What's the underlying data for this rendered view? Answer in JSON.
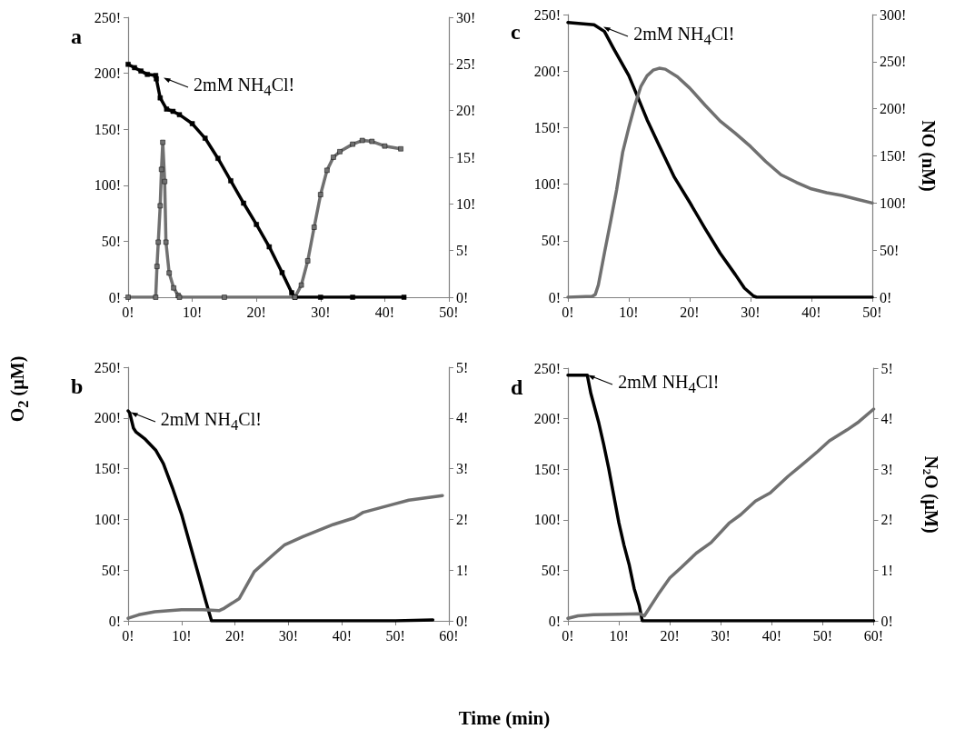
{
  "chart_data": [
    {
      "type": "line",
      "title": "a",
      "ylabel": "O$_{2}$ (µM)",
      "marker": "square",
      "xlim": [
        0,
        50
      ],
      "xticks": [
        {
          "value": 0,
          "label": "0!"
        },
        {
          "value": 10,
          "label": "10!"
        },
        {
          "value": 20,
          "label": "20!"
        },
        {
          "value": 30,
          "label": "30!"
        },
        {
          "value": 40,
          "label": "40!"
        },
        {
          "value": 50,
          "label": "50!"
        }
      ],
      "ylim": [
        0,
        250
      ],
      "yticks": [
        {
          "value": 0,
          "label": "0!"
        },
        {
          "value": 50,
          "label": "50!"
        },
        {
          "value": 100,
          "label": "100!"
        },
        {
          "value": 150,
          "label": "150!"
        },
        {
          "value": 200,
          "label": "200!"
        },
        {
          "value": 250,
          "label": "250!"
        }
      ],
      "y2lim": [
        0,
        30
      ],
      "y2ticks": [
        {
          "value": 0,
          "label": "0!"
        },
        {
          "value": 5,
          "label": "5!"
        },
        {
          "value": 10,
          "label": "10!"
        },
        {
          "value": 15,
          "label": "15!"
        },
        {
          "value": 20,
          "label": "20!"
        },
        {
          "value": 25,
          "label": "25!"
        },
        {
          "value": 30,
          "label": "30!"
        }
      ],
      "annotations": [
        {
          "text": "2mM NH$_{4}$Cl!",
          "x": 5.4,
          "y": 196
        }
      ],
      "series": [
        {
          "color": "#000000",
          "x": [
            0,
            1,
            2,
            3,
            4.3,
            4.4,
            5,
            6,
            7,
            8,
            10,
            12,
            14,
            16,
            18,
            20,
            22,
            24,
            25.5,
            26,
            30,
            35,
            43
          ],
          "values": [
            208,
            205,
            202,
            199,
            198,
            195,
            178,
            168,
            166,
            163,
            155,
            142,
            124,
            104,
            84,
            65,
            45,
            22,
            4,
            0,
            0,
            0,
            0
          ]
        },
        {
          "color": "#707070",
          "axis": "y2",
          "x": [
            0,
            4.3,
            4.5,
            4.7,
            5.0,
            5.2,
            5.4,
            5.7,
            5.9,
            6.4,
            7.1,
            7.8,
            8,
            15,
            26,
            27,
            28,
            29,
            30,
            31,
            32,
            33,
            35,
            36.5,
            38,
            40,
            42.5
          ],
          "values": [
            0,
            0,
            3.3,
            5.9,
            9.8,
            13.7,
            16.6,
            12.4,
            5.9,
            2.6,
            1,
            0.2,
            0,
            0,
            0,
            1.3,
            3.9,
            7.5,
            11,
            13.6,
            15,
            15.6,
            16.4,
            16.8,
            16.7,
            16.2,
            15.9
          ]
        }
      ]
    },
    {
      "type": "line",
      "title": "c",
      "y2label": "NO (nM)",
      "xlim": [
        0,
        50
      ],
      "xticks": [
        {
          "value": 0,
          "label": "0!"
        },
        {
          "value": 10,
          "label": "10!"
        },
        {
          "value": 20,
          "label": "20!"
        },
        {
          "value": 30,
          "label": "30!"
        },
        {
          "value": 40,
          "label": "40!"
        },
        {
          "value": 50,
          "label": "50!"
        }
      ],
      "ylim": [
        0,
        250
      ],
      "yticks": [
        {
          "value": 0,
          "label": "0!"
        },
        {
          "value": 50,
          "label": "50!"
        },
        {
          "value": 100,
          "label": "100!"
        },
        {
          "value": 150,
          "label": "150!"
        },
        {
          "value": 200,
          "label": "200!"
        },
        {
          "value": 250,
          "label": "250!"
        }
      ],
      "y2lim": [
        0,
        300
      ],
      "y2ticks": [
        {
          "value": 0,
          "label": "0!"
        },
        {
          "value": 50,
          "label": "50!"
        },
        {
          "value": 100,
          "label": "100!"
        },
        {
          "value": 150,
          "label": "150!"
        },
        {
          "value": 200,
          "label": "200!"
        },
        {
          "value": 250,
          "label": "250!"
        },
        {
          "value": 300,
          "label": "300!"
        }
      ],
      "annotations": [
        {
          "text": "2mM NH$_{4}$Cl!",
          "x": 5.7,
          "y": 239
        }
      ],
      "series": [
        {
          "color": "#000000",
          "x": [
            0,
            4.3,
            6,
            7.5,
            10,
            11.4,
            13,
            15,
            17.5,
            20,
            22.5,
            25,
            27.5,
            29,
            30.5,
            31,
            40,
            50
          ],
          "values": [
            243,
            241,
            235,
            220,
            196,
            178,
            157,
            134,
            106,
            84,
            61,
            39,
            20,
            8,
            1,
            0,
            0,
            0
          ]
        },
        {
          "color": "#707070",
          "axis": "y2",
          "x": [
            0,
            4,
            4.5,
            5,
            6,
            7,
            8,
            9,
            10,
            11,
            12,
            13,
            14,
            15,
            16,
            18,
            20,
            22.5,
            25,
            27.5,
            30,
            32.5,
            35,
            37.5,
            40,
            42.5,
            45,
            47.5,
            50
          ],
          "values": [
            0,
            1,
            3,
            13,
            47,
            80,
            114,
            154,
            180,
            204,
            224,
            235,
            241,
            243,
            242,
            234,
            222,
            204,
            187,
            174,
            160,
            144,
            130,
            122,
            115,
            111,
            108,
            104,
            100
          ]
        }
      ]
    },
    {
      "type": "line",
      "title": "b",
      "xlabel": "Time (min)",
      "xlim": [
        0,
        60
      ],
      "xticks": [
        {
          "value": 0,
          "label": "0!"
        },
        {
          "value": 10,
          "label": "10!"
        },
        {
          "value": 20,
          "label": "20!"
        },
        {
          "value": 30,
          "label": "30!"
        },
        {
          "value": 40,
          "label": "40!"
        },
        {
          "value": 50,
          "label": "50!"
        },
        {
          "value": 60,
          "label": "60!"
        }
      ],
      "ylim": [
        0,
        250
      ],
      "yticks": [
        {
          "value": 0,
          "label": "0!"
        },
        {
          "value": 50,
          "label": "50!"
        },
        {
          "value": 100,
          "label": "100!"
        },
        {
          "value": 150,
          "label": "150!"
        },
        {
          "value": 200,
          "label": "200!"
        },
        {
          "value": 250,
          "label": "250!"
        }
      ],
      "y2lim": [
        0,
        5
      ],
      "y2ticks": [
        {
          "value": 0,
          "label": "0!"
        },
        {
          "value": 1,
          "label": "1!"
        },
        {
          "value": 2,
          "label": "2!"
        },
        {
          "value": 3,
          "label": "3!"
        },
        {
          "value": 4,
          "label": "4!"
        },
        {
          "value": 5,
          "label": "5!"
        }
      ],
      "annotations": [
        {
          "text": "2mM NH$_{4}$Cl!",
          "x": 0.3,
          "y": 205
        }
      ],
      "series": [
        {
          "color": "#000000",
          "x": [
            0,
            0.3,
            1,
            1.5,
            3.2,
            5.2,
            6.6,
            8.3,
            10,
            11.7,
            13.4,
            14.5,
            15.6,
            20,
            30,
            40,
            50,
            57
          ],
          "values": [
            207,
            205,
            190,
            186,
            179,
            168,
            155,
            131,
            105,
            73,
            41,
            20,
            0,
            0,
            0,
            0,
            0,
            1
          ]
        },
        {
          "color": "#707070",
          "axis": "y2",
          "x": [
            0,
            2,
            5,
            10,
            14,
            17,
            18,
            20.8,
            23.6,
            27,
            29.3,
            32.7,
            38.4,
            42.3,
            44,
            49.7,
            52.5,
            58.8
          ],
          "values": [
            0.05,
            0.12,
            0.18,
            0.22,
            0.22,
            0.2,
            0.25,
            0.44,
            0.97,
            1.29,
            1.5,
            1.66,
            1.9,
            2.03,
            2.14,
            2.3,
            2.38,
            2.47
          ]
        }
      ]
    },
    {
      "type": "line",
      "title": "d",
      "y2label": "N$_{2}$O (µM)",
      "xlim": [
        0,
        60
      ],
      "xticks": [
        {
          "value": 0,
          "label": "0!"
        },
        {
          "value": 10,
          "label": "10!"
        },
        {
          "value": 20,
          "label": "20!"
        },
        {
          "value": 30,
          "label": "30!"
        },
        {
          "value": 40,
          "label": "40!"
        },
        {
          "value": 50,
          "label": "50!"
        },
        {
          "value": 60,
          "label": "60!"
        }
      ],
      "ylim": [
        0,
        250
      ],
      "yticks": [
        {
          "value": 0,
          "label": "0!"
        },
        {
          "value": 50,
          "label": "50!"
        },
        {
          "value": 100,
          "label": "100!"
        },
        {
          "value": 150,
          "label": "150!"
        },
        {
          "value": 200,
          "label": "200!"
        },
        {
          "value": 250,
          "label": "250!"
        }
      ],
      "y2lim": [
        0,
        5
      ],
      "y2ticks": [
        {
          "value": 0,
          "label": "0!"
        },
        {
          "value": 1,
          "label": "1!"
        },
        {
          "value": 2,
          "label": "2!"
        },
        {
          "value": 3,
          "label": "3!"
        },
        {
          "value": 4,
          "label": "4!"
        },
        {
          "value": 5,
          "label": "5!"
        }
      ],
      "annotations": [
        {
          "text": "2mM NH$_{4}$Cl!",
          "x": 3.8,
          "y": 243
        }
      ],
      "series": [
        {
          "color": "#000000",
          "x": [
            0,
            3.8,
            4.5,
            6,
            7,
            8,
            9,
            10,
            11,
            12,
            13,
            14,
            14.6,
            20,
            30,
            40,
            50,
            60
          ],
          "values": [
            243,
            243,
            225,
            197,
            175,
            151,
            124,
            97,
            75,
            56,
            32,
            15,
            0,
            0,
            0,
            0,
            0,
            0
          ]
        },
        {
          "color": "#707070",
          "axis": "y2",
          "x": [
            0,
            2,
            5,
            10,
            14,
            15,
            17.7,
            20,
            22.3,
            25.2,
            28.1,
            31.6,
            33.9,
            36.8,
            39.7,
            43.2,
            45.5,
            49,
            51.3,
            54.8,
            57.1,
            60
          ],
          "values": [
            0.05,
            0.1,
            0.12,
            0.13,
            0.14,
            0.1,
            0.52,
            0.85,
            1.06,
            1.34,
            1.55,
            1.93,
            2.1,
            2.37,
            2.53,
            2.86,
            3.05,
            3.35,
            3.56,
            3.78,
            3.94,
            4.19
          ]
        }
      ]
    }
  ]
}
